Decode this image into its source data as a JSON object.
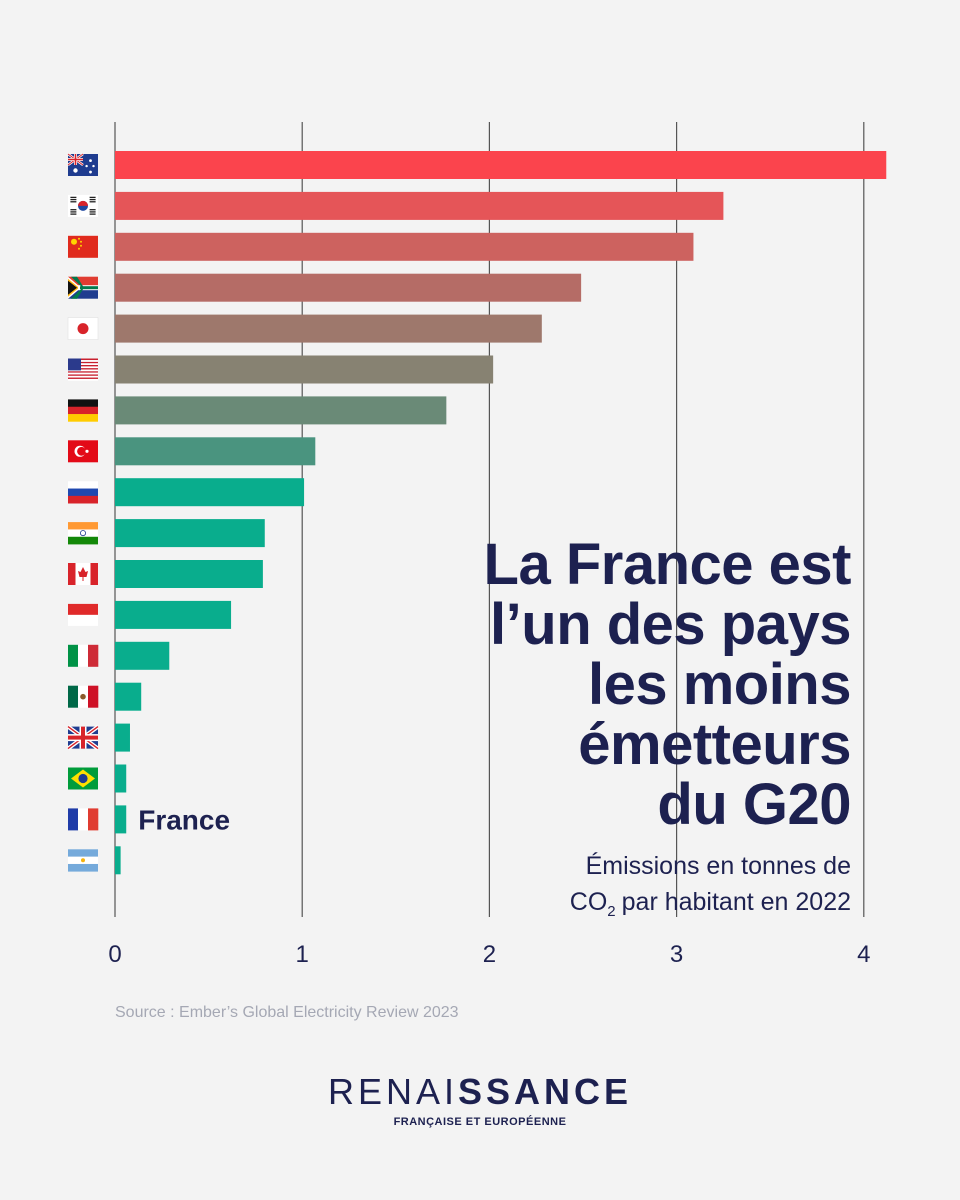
{
  "chart_data": {
    "type": "bar",
    "orientation": "horizontal",
    "title": "La France est l’un des pays les moins émetteurs du G20",
    "subtitle": "Émissions en tonnes de CO₂ par habitant en 2022",
    "xlim": [
      0,
      4.12
    ],
    "xticks": [
      0,
      1,
      2,
      3,
      4
    ],
    "grid": true,
    "categories": [
      "Australia",
      "South Korea",
      "China",
      "South Africa",
      "Japan",
      "United States",
      "Germany",
      "Türkiye",
      "Russia",
      "India",
      "Canada",
      "Indonesia",
      "Italy",
      "Mexico",
      "United Kingdom",
      "Brazil",
      "France",
      "Argentina"
    ],
    "flags": [
      "flag-australia",
      "flag-south-korea",
      "flag-china",
      "flag-south-africa",
      "flag-japan",
      "flag-usa",
      "flag-germany",
      "flag-turkey",
      "flag-russia",
      "flag-india",
      "flag-canada",
      "flag-indonesia",
      "flag-italy",
      "flag-mexico",
      "flag-uk",
      "flag-brazil",
      "flag-france",
      "flag-argentina"
    ],
    "values": [
      4.12,
      3.25,
      3.09,
      2.49,
      2.28,
      2.02,
      1.77,
      1.07,
      1.01,
      0.8,
      0.79,
      0.62,
      0.29,
      0.14,
      0.08,
      0.06,
      0.06,
      0.03
    ],
    "bar_colors": [
      "#fb444d",
      "#e55558",
      "#cd625f",
      "#b56c66",
      "#9e786c",
      "#878272",
      "#6a8a77",
      "#4a947f",
      "#09ad8d",
      "#09ad8d",
      "#09ad8d",
      "#09ad8d",
      "#09ad8d",
      "#09ad8d",
      "#09ad8d",
      "#09ad8d",
      "#09ad8d",
      "#09ad8d"
    ],
    "highlight_label": "France",
    "highlight_index": 16
  },
  "title_lines": [
    "La France est",
    "l’un des pays",
    "les moins",
    "émetteurs",
    "du G20"
  ],
  "subtitle": {
    "line1": "Émissions en tonnes de",
    "line2_pre": "CO",
    "line2_sub": "2",
    "line2_post": "par habitant en 2022"
  },
  "source": "Source :  Ember’s Global Electricity Review 2023",
  "logo": {
    "light": "RENAI",
    "bold": "SSANCE",
    "sub": "FRANÇAISE ET EUROPÉENNE"
  },
  "colors": {
    "navy": "#1d2150",
    "gridline": "#555555",
    "background": "#f3f3f3"
  }
}
